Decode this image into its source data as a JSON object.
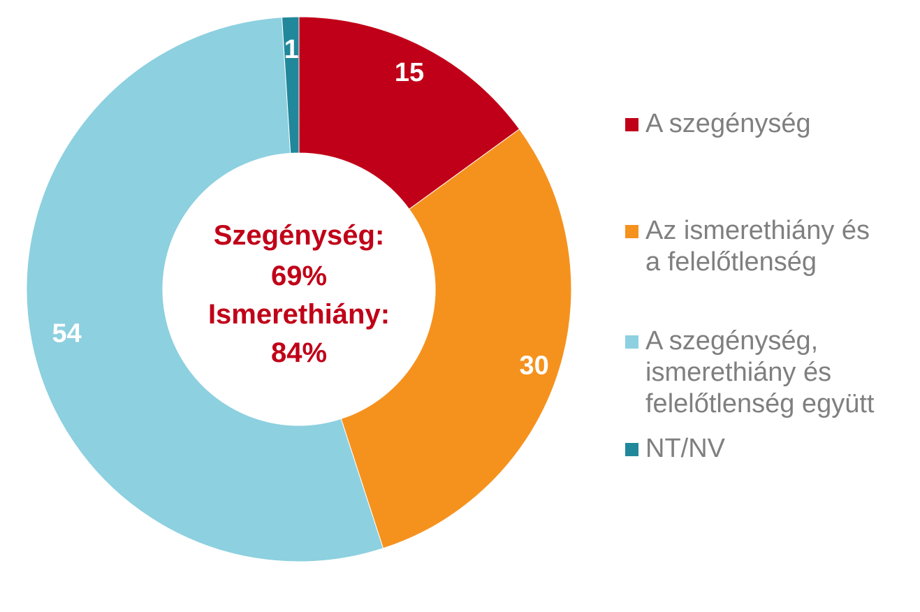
{
  "chart_data": {
    "type": "pie",
    "variant": "donut",
    "categories": [
      "A szegénység",
      "Az ismerethiány és\na felelőtlenség",
      "A szegénység,\nismerethiány és\nfelelőtlenség együtt",
      "NT/NV"
    ],
    "values": [
      15,
      30,
      54,
      1
    ],
    "value_labels": [
      "15",
      "30",
      "54",
      "1"
    ],
    "colors": [
      "#c00018",
      "#f5921e",
      "#8dd0e0",
      "#21879b"
    ],
    "center_text": [
      "Szegénység:",
      "69%",
      "Ismerethiány:",
      "84%"
    ],
    "center_text_color": "#c00018",
    "legend_position": "right",
    "legend_text_color": "#7f7f7f"
  }
}
